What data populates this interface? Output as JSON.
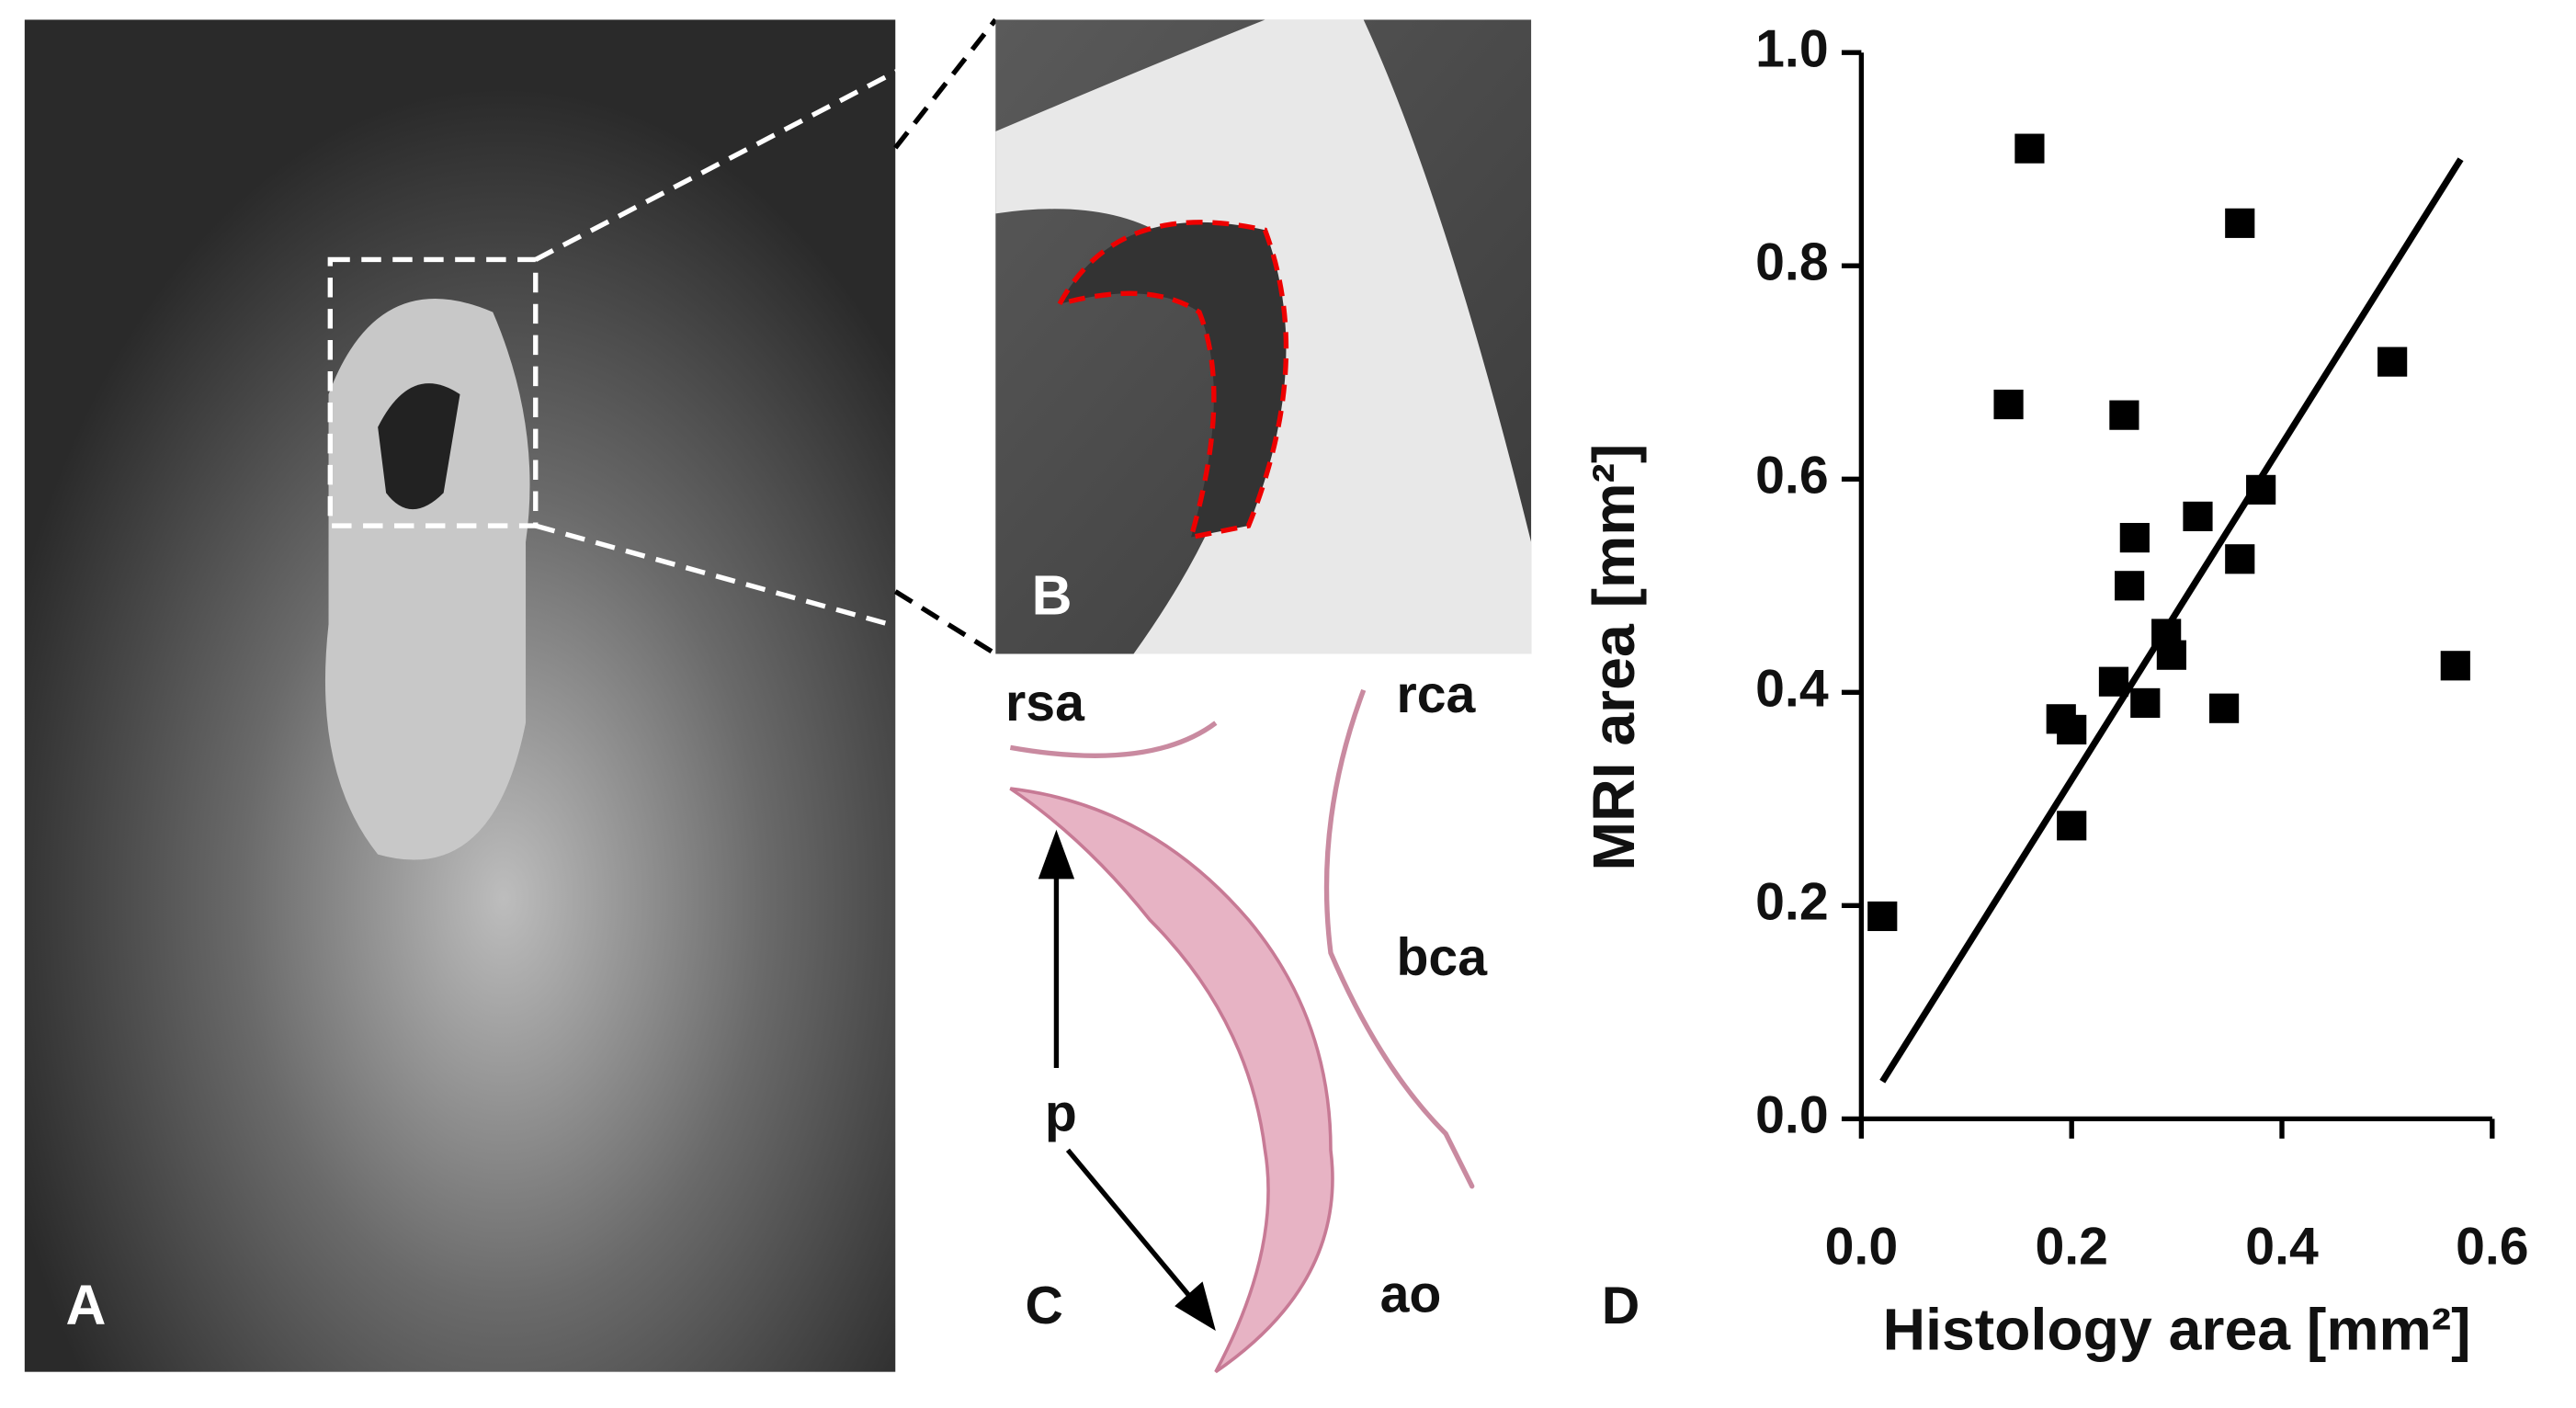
{
  "chart_data": {
    "type": "scatter",
    "x_label": "Histology area [mm²]",
    "y_label": "MRI area [mm²]",
    "panel_label": "D",
    "x": [
      0.02,
      0.16,
      0.14,
      0.25,
      0.36,
      0.505,
      0.38,
      0.32,
      0.26,
      0.255,
      0.36,
      0.29,
      0.295,
      0.24,
      0.27,
      0.345,
      0.19,
      0.2,
      0.2,
      0.565
    ],
    "values": [
      0.19,
      0.91,
      0.67,
      0.66,
      0.84,
      0.71,
      0.59,
      0.565,
      0.545,
      0.5,
      0.525,
      0.455,
      0.435,
      0.41,
      0.39,
      0.385,
      0.375,
      0.365,
      0.275,
      0.425
    ],
    "color": "#000000",
    "fit_line": {
      "x": [
        0.02,
        0.57
      ],
      "y": [
        0.035,
        0.9
      ]
    },
    "xlim": [
      0,
      0.6
    ],
    "ylim": [
      0,
      1
    ],
    "xticks": [
      {
        "value": 0,
        "label": "0.0"
      },
      0.2,
      0.4,
      0.6
    ],
    "yticks": [
      {
        "value": 0,
        "label": "0.0"
      },
      0.2,
      0.4,
      0.6,
      0.8,
      {
        "value": 1,
        "label": "1.0"
      }
    ]
  },
  "panels": {
    "a_label": "A",
    "b_label": "B",
    "c_label": "C",
    "c_annotations": [
      "rsa",
      "rca",
      "bca",
      "p",
      "ao"
    ]
  }
}
